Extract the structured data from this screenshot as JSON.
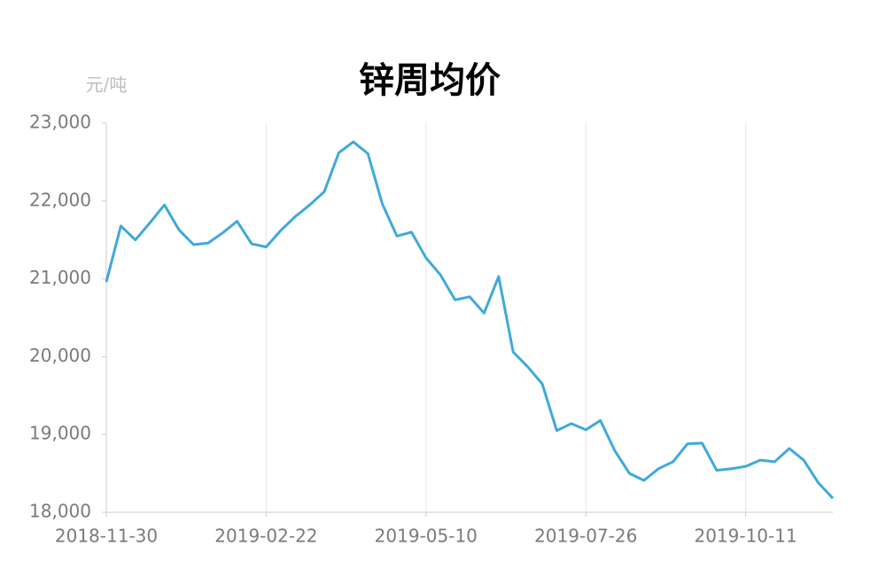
{
  "chart_data": {
    "type": "line",
    "title": "锌周均价",
    "y_unit": "元/吨",
    "categories": [
      "2018-11-30",
      null,
      null,
      null,
      null,
      null,
      null,
      null,
      null,
      null,
      null,
      "2019-02-22",
      null,
      null,
      null,
      null,
      null,
      null,
      null,
      null,
      null,
      null,
      "2019-05-10",
      null,
      null,
      null,
      null,
      null,
      null,
      null,
      null,
      null,
      null,
      "2019-07-26",
      null,
      null,
      null,
      null,
      null,
      null,
      null,
      null,
      null,
      null,
      "2019-10-11",
      null,
      null,
      null,
      null,
      null,
      null
    ],
    "series": [
      {
        "name": "锌周均价",
        "color": "#3fa9dc",
        "values": [
          20960,
          21680,
          21500,
          21720,
          21950,
          21630,
          21440,
          21460,
          21590,
          21740,
          21450,
          21410,
          21620,
          21800,
          21950,
          22120,
          22620,
          22760,
          22610,
          21960,
          21550,
          21600,
          21270,
          21050,
          20730,
          20770,
          20560,
          21030,
          20060,
          19870,
          19650,
          19050,
          19140,
          19060,
          19180,
          18790,
          18500,
          18410,
          18560,
          18650,
          18880,
          18890,
          18540,
          18560,
          18590,
          18670,
          18650,
          18820,
          18670,
          18380,
          18180
        ]
      }
    ],
    "ylim": [
      18000,
      23000
    ],
    "yticks": [
      {
        "value": 18000,
        "label": "18,000"
      },
      {
        "value": 19000,
        "label": "19,000"
      },
      {
        "value": 20000,
        "label": "20,000"
      },
      {
        "value": 21000,
        "label": "21,000"
      },
      {
        "value": 22000,
        "label": "22,000"
      },
      {
        "value": 23000,
        "label": "23,000"
      }
    ],
    "grid": true
  }
}
